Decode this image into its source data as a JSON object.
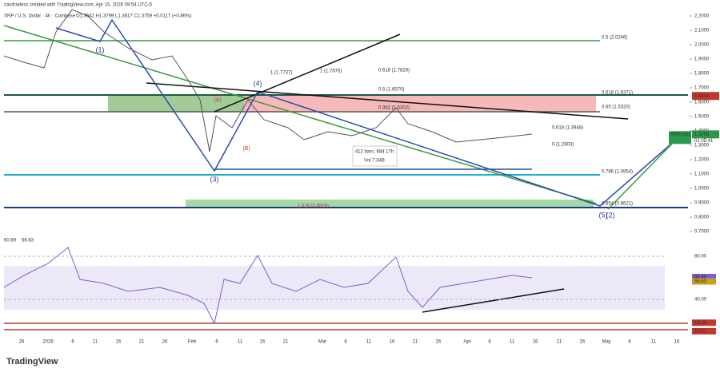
{
  "header": {
    "credit": "casitradess created with TradingView.com, Apr 15, 2026 09:54 UTC-5",
    "symbol": "XRP / U.S. Dollar · 4h · Coinbase",
    "ohlc": "O1.3642 H1.3799 L1.3617 C1.3759 +0.0117 (+0.86%)"
  },
  "price_axis": {
    "ylim": [
      0.6,
      2.25
    ],
    "ticks": [
      {
        "value": 2.2,
        "label": "2.2000"
      },
      {
        "value": 2.1,
        "label": "2.1000"
      },
      {
        "value": 2.0,
        "label": "2.0000"
      },
      {
        "value": 1.9,
        "label": "1.9000"
      },
      {
        "value": 1.8,
        "label": "1.8000"
      },
      {
        "value": 1.7,
        "label": "1.7000"
      },
      {
        "value": 1.6,
        "label": "1.6000"
      },
      {
        "value": 1.5,
        "label": "1.5000"
      },
      {
        "value": 1.4,
        "label": "1.4000"
      },
      {
        "value": 1.3,
        "label": "1.3000"
      },
      {
        "value": 1.2,
        "label": "1.2000"
      },
      {
        "value": 1.1,
        "label": "1.1000"
      },
      {
        "value": 1.0,
        "label": "1.0000"
      },
      {
        "value": 0.9,
        "label": "0.9000"
      },
      {
        "value": 0.8,
        "label": "0.8000"
      },
      {
        "value": 0.7,
        "label": "0.7000"
      }
    ],
    "badges": [
      {
        "value": 1.6432,
        "label": "1.6432"
      },
      {
        "value": 1.3759,
        "label": "1.3759"
      }
    ],
    "symbol_badge": "XRPUSD",
    "countdown": "01:05:41"
  },
  "time_axis": [
    "26",
    "2026",
    "6",
    "11",
    "16",
    "21",
    "26",
    "Feb",
    "6",
    "11",
    "16",
    "21",
    "Mar",
    "6",
    "11",
    "16",
    "21",
    "26",
    "Apr",
    "6",
    "11",
    "16",
    "21",
    "26",
    "May",
    "6",
    "11",
    "16"
  ],
  "fib_labels": [
    "0.5 (2.0246)",
    "0.618 (1.6371)",
    "0.65 (1.5320)",
    "0.618 (1.3948)",
    "0 (1.2803)",
    "0.786 (1.0854)",
    "0.854 (0.8621)",
    "1 (1.7875)",
    "1 (1.7737)",
    "0.618 (1.7829)",
    "0.5 (1.6570)",
    "0.382 (1.5302)",
    "1.618 (0.8829)"
  ],
  "waves": [
    "(1)",
    "(3)",
    "(4)",
    "(A)",
    "(B)",
    "(5)",
    "(2)"
  ],
  "measure": {
    "bars": "412 bars, 68d 17h",
    "vol": "Vol 7.34B"
  },
  "rsi": {
    "legend": [
      "60.69",
      "56.63"
    ],
    "ticks": [
      {
        "value": 80,
        "label": "80.00"
      },
      {
        "value": 40,
        "label": "40.00"
      }
    ],
    "badges": [
      {
        "value": 60.69,
        "label": "60.69"
      },
      {
        "value": 56.63,
        "label": "56.63"
      },
      {
        "value": 18.34,
        "label": "18.34"
      },
      {
        "value": 10.41,
        "label": "10.41"
      }
    ]
  },
  "brand": "TradingView"
}
